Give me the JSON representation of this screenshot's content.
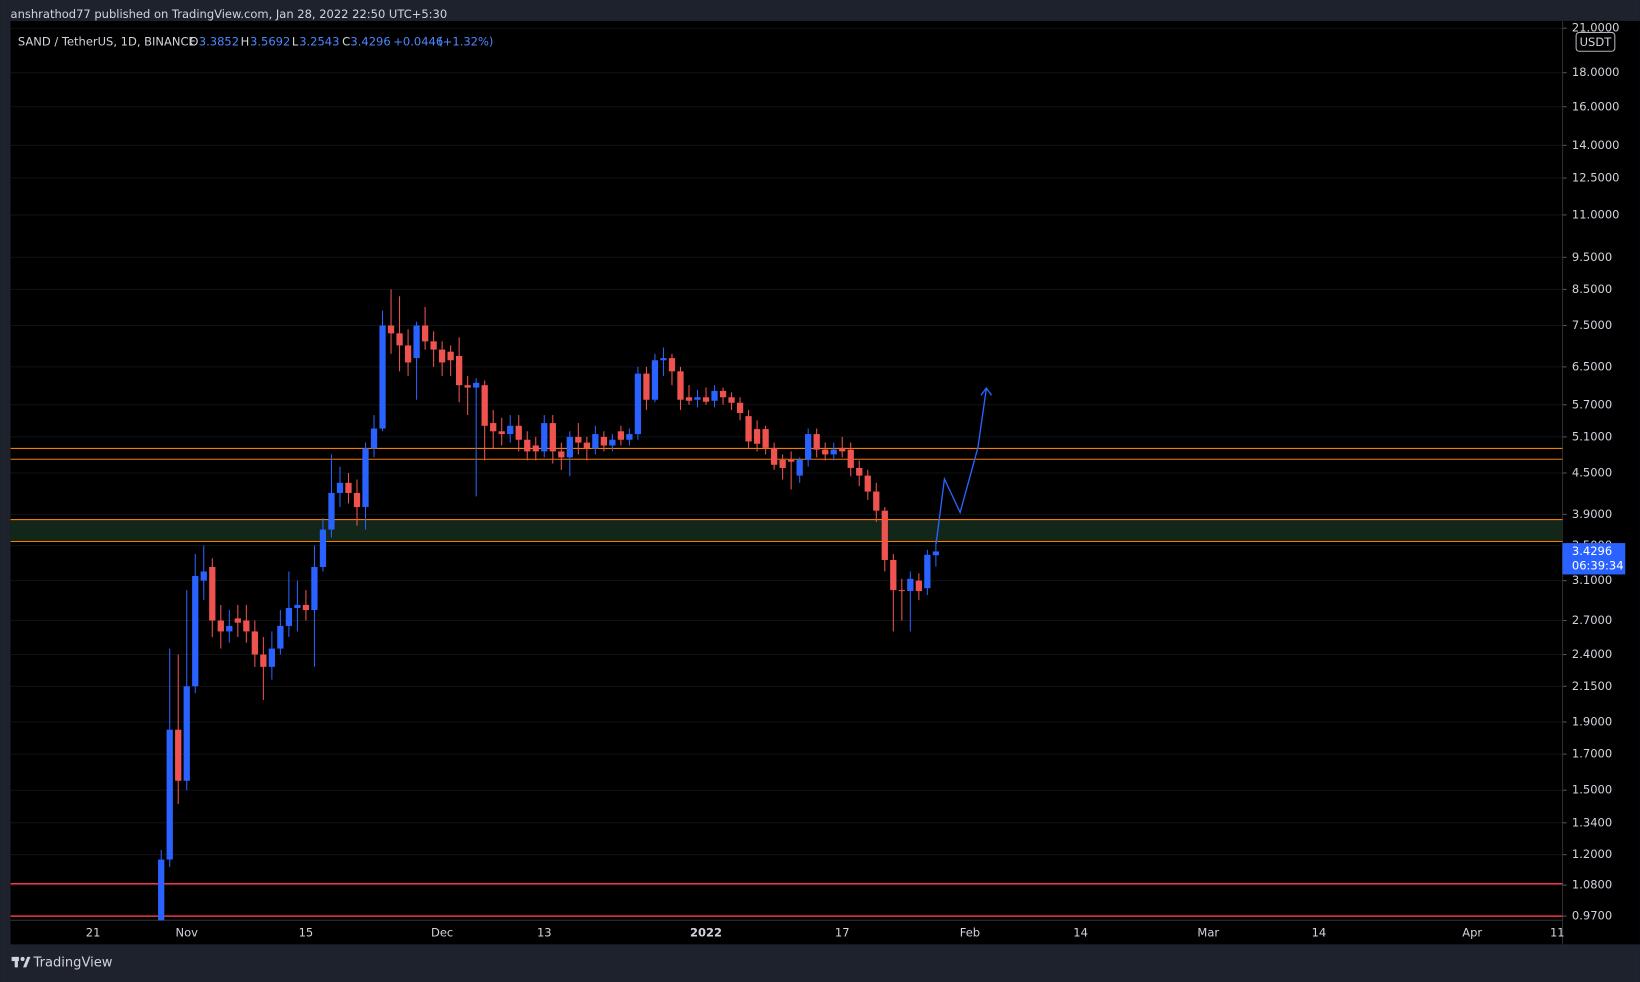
{
  "chart_data": {
    "type": "candlestick",
    "header": "anshrathod77 published on TradingView.com, Jan 28, 2022 22:50 UTC+5:30",
    "title": "SAND / TetherUS, 1D, BINANCE",
    "ohlc_labels": [
      "O",
      "H",
      "L",
      "C"
    ],
    "change_label": "+0.0446",
    "change_pct_label": "(+1.32%)",
    "currency": "USDT",
    "countdown": "06:39:34",
    "brand": "TradingView",
    "categories": [
      null,
      null,
      null,
      null,
      null,
      null,
      null,
      null,
      null,
      "21",
      null,
      null,
      null,
      null,
      null,
      null,
      null,
      null,
      null,
      null,
      "Nov",
      null,
      null,
      null,
      null,
      null,
      null,
      null,
      null,
      null,
      null,
      null,
      null,
      null,
      "15",
      null,
      null,
      null,
      null,
      null,
      null,
      null,
      null,
      null,
      null,
      null,
      null,
      null,
      null,
      null,
      "Dec",
      null,
      null,
      null,
      null,
      null,
      null,
      null,
      null,
      null,
      null,
      null,
      "13",
      null,
      null,
      null,
      null,
      null,
      null,
      null,
      null,
      null,
      null,
      null,
      null,
      null,
      null,
      null,
      null,
      null,
      null,
      "2022",
      null,
      null,
      null,
      null,
      null,
      null,
      null,
      null,
      null,
      null,
      null,
      null,
      null,
      null,
      null,
      "17",
      null,
      null,
      null,
      null,
      null,
      null,
      null,
      null,
      null,
      null,
      null,
      null,
      null,
      null,
      "Feb",
      null,
      null,
      null,
      null,
      null,
      null,
      null,
      null,
      null,
      null,
      null,
      null,
      "14",
      null,
      null,
      null,
      null,
      null,
      null,
      null,
      null,
      null,
      null,
      null,
      null,
      null,
      null,
      "Mar",
      null,
      null,
      null,
      null,
      null,
      null,
      null,
      null,
      null,
      null,
      null,
      null,
      "14",
      null,
      null,
      null,
      null,
      null,
      null,
      null,
      null,
      null,
      null,
      null,
      null,
      null,
      null,
      null,
      null,
      null,
      "Apr",
      null,
      null,
      null,
      null,
      null,
      null,
      null,
      null,
      null,
      "11"
    ],
    "open": [
      null,
      null,
      null,
      null,
      null,
      null,
      null,
      null,
      null,
      null,
      null,
      null,
      null,
      null,
      null,
      null,
      null,
      0.95,
      1.18,
      1.85,
      1.55,
      2.15,
      3.1,
      3.25,
      2.7,
      2.6,
      2.72,
      2.7,
      2.6,
      2.4,
      2.3,
      2.45,
      2.65,
      2.82,
      2.85,
      2.8,
      3.25,
      3.7,
      4.2,
      4.35,
      4.2,
      4.0,
      4.9,
      5.25,
      7.5,
      7.3,
      7.0,
      6.7,
      7.5,
      7.1,
      6.9,
      6.85,
      6.75,
      6.1,
      6.05,
      6.1,
      5.35,
      5.2,
      5.15,
      5.3,
      5.05,
      4.95,
      4.85,
      5.35,
      4.85,
      4.75,
      5.1,
      5.0,
      4.9,
      5.1,
      4.95,
      5.2,
      5.05,
      5.15,
      6.35,
      5.8,
      6.65,
      6.7,
      6.4,
      5.85,
      5.8,
      5.85,
      5.78,
      5.98,
      5.85,
      5.74,
      5.48,
      5.24,
      5.24,
      4.91,
      4.71,
      4.71,
      4.46,
      4.71,
      5.15,
      4.88,
      4.8,
      4.91,
      4.88,
      4.58,
      4.46,
      4.22,
      3.95,
      3.33,
      3.0,
      2.99,
      3.1,
      3.02,
      3.3852,
      null,
      null,
      null,
      null,
      null,
      null,
      null,
      null,
      null,
      null,
      null,
      null,
      null,
      null,
      null,
      null,
      null,
      null,
      null,
      null,
      null,
      null,
      null,
      null,
      null,
      null,
      null,
      null,
      null,
      null,
      null,
      null,
      null,
      null,
      null,
      null,
      null,
      null,
      null,
      null,
      null,
      null,
      null,
      null,
      null,
      null,
      null,
      null,
      null,
      null,
      null,
      null,
      null,
      null,
      null,
      null,
      null,
      null,
      null,
      null,
      null,
      null,
      null,
      null,
      null,
      null,
      null,
      null,
      null,
      null,
      null,
      null,
      null
    ],
    "high": [
      null,
      null,
      null,
      null,
      null,
      null,
      null,
      null,
      null,
      null,
      null,
      null,
      null,
      null,
      null,
      null,
      null,
      1.22,
      2.45,
      2.4,
      3.0,
      3.4,
      3.5,
      3.35,
      2.85,
      2.8,
      2.85,
      2.85,
      2.7,
      2.55,
      2.6,
      2.8,
      3.2,
      3.1,
      3.0,
      3.5,
      3.85,
      4.8,
      4.6,
      4.5,
      4.4,
      5.0,
      5.5,
      7.9,
      8.5,
      8.3,
      7.4,
      7.6,
      8.0,
      7.35,
      7.1,
      7.0,
      7.2,
      6.3,
      6.25,
      6.2,
      5.6,
      5.45,
      5.5,
      5.5,
      5.2,
      5.1,
      5.5,
      5.5,
      5.0,
      5.2,
      5.35,
      5.1,
      5.3,
      5.2,
      5.15,
      5.3,
      5.25,
      6.5,
      6.5,
      6.8,
      6.95,
      6.8,
      6.5,
      6.1,
      6.0,
      6.05,
      6.1,
      6.05,
      5.95,
      5.85,
      5.6,
      5.4,
      5.3,
      5.0,
      4.8,
      4.85,
      4.75,
      5.25,
      5.25,
      5.0,
      5.0,
      5.1,
      5.0,
      4.7,
      4.55,
      4.35,
      4.0,
      3.4,
      3.12,
      3.2,
      3.18,
      3.45,
      3.5692,
      null,
      null,
      null,
      null,
      null,
      null,
      null,
      null,
      null,
      null,
      null,
      null,
      null,
      null,
      null,
      null,
      null,
      null,
      null,
      null,
      null,
      null,
      null,
      null,
      null,
      null,
      null,
      null,
      null,
      null,
      null,
      null,
      null,
      null,
      null,
      null,
      null,
      null,
      null,
      null,
      null,
      null,
      null,
      null,
      null,
      null,
      null,
      null,
      null,
      null,
      null,
      null,
      null,
      null,
      null,
      null,
      null,
      null,
      null,
      null,
      null,
      null,
      null,
      null,
      null,
      null,
      null,
      null,
      null,
      null,
      null,
      null,
      null
    ],
    "low": [
      null,
      null,
      null,
      null,
      null,
      null,
      null,
      null,
      null,
      null,
      null,
      null,
      null,
      null,
      null,
      null,
      null,
      0.9,
      1.15,
      1.43,
      1.5,
      2.1,
      2.9,
      2.55,
      2.45,
      2.5,
      2.55,
      2.5,
      2.3,
      2.05,
      2.2,
      2.4,
      2.55,
      2.6,
      2.7,
      2.3,
      3.2,
      3.6,
      4.0,
      4.05,
      3.75,
      3.7,
      4.75,
      5.2,
      6.8,
      6.4,
      6.3,
      5.8,
      6.9,
      6.5,
      6.3,
      6.3,
      5.75,
      5.5,
      4.15,
      4.7,
      4.9,
      4.95,
      5.0,
      4.85,
      4.7,
      4.7,
      4.75,
      4.65,
      4.55,
      4.45,
      4.8,
      4.7,
      4.8,
      4.85,
      4.85,
      4.95,
      4.95,
      5.05,
      5.6,
      5.75,
      6.3,
      6.1,
      5.6,
      5.7,
      5.65,
      5.7,
      5.65,
      5.7,
      5.6,
      5.4,
      4.9,
      4.85,
      4.8,
      4.55,
      4.4,
      4.25,
      4.35,
      4.6,
      4.75,
      4.7,
      4.7,
      4.75,
      4.45,
      4.3,
      4.1,
      3.8,
      3.2,
      2.6,
      2.7,
      2.6,
      2.9,
      2.95,
      3.2543,
      null,
      null,
      null,
      null,
      null,
      null,
      null,
      null,
      null,
      null,
      null,
      null,
      null,
      null,
      null,
      null,
      null,
      null,
      null,
      null,
      null,
      null,
      null,
      null,
      null,
      null,
      null,
      null,
      null,
      null,
      null,
      null,
      null,
      null,
      null,
      null,
      null,
      null,
      null,
      null,
      null,
      null,
      null,
      null,
      null,
      null,
      null,
      null,
      null,
      null,
      null,
      null,
      null,
      null,
      null,
      null,
      null,
      null,
      null,
      null,
      null,
      null,
      null,
      null,
      null,
      null,
      null,
      null,
      null,
      null,
      null,
      null,
      null
    ],
    "close": [
      null,
      null,
      null,
      null,
      null,
      null,
      null,
      null,
      null,
      null,
      null,
      null,
      null,
      null,
      null,
      null,
      null,
      1.18,
      1.85,
      1.55,
      2.15,
      3.15,
      3.2,
      2.7,
      2.6,
      2.65,
      2.68,
      2.6,
      2.4,
      2.3,
      2.45,
      2.65,
      2.82,
      2.85,
      2.8,
      3.25,
      3.7,
      4.2,
      4.35,
      4.2,
      4.0,
      4.9,
      5.25,
      7.5,
      7.3,
      7.0,
      6.6,
      7.5,
      7.1,
      6.9,
      6.6,
      6.65,
      6.1,
      6.05,
      6.15,
      5.3,
      5.2,
      5.15,
      5.3,
      5.05,
      4.85,
      4.85,
      5.35,
      4.85,
      4.75,
      5.1,
      5.0,
      4.9,
      5.15,
      4.95,
      5.05,
      5.05,
      5.15,
      6.35,
      5.8,
      6.65,
      6.7,
      6.4,
      5.8,
      5.78,
      5.85,
      5.76,
      5.98,
      5.85,
      5.74,
      5.54,
      5.02,
      4.98,
      4.91,
      4.63,
      4.58,
      4.68,
      4.71,
      5.15,
      4.88,
      4.8,
      4.88,
      4.85,
      4.58,
      4.46,
      4.22,
      3.95,
      3.33,
      3.0,
      2.99,
      3.12,
      2.99,
      3.39,
      3.4296,
      null,
      null,
      null,
      null,
      null,
      null,
      null,
      null,
      null,
      null,
      null,
      null,
      null,
      null,
      null,
      null,
      null,
      null,
      null,
      null,
      null,
      null,
      null,
      null,
      null,
      null,
      null,
      null,
      null,
      null,
      null,
      null,
      null,
      null,
      null,
      null,
      null,
      null,
      null,
      null,
      null,
      null,
      null,
      null,
      null,
      null,
      null,
      null,
      null,
      null,
      null,
      null,
      null,
      null,
      null,
      null,
      null,
      null,
      null,
      null,
      null,
      null,
      null,
      null,
      null,
      null,
      null,
      null,
      null,
      null,
      null,
      null,
      null
    ],
    "up_color": "#2962ff",
    "down_color": "#ef5350",
    "log_y": true,
    "grid": true,
    "ylim": [
      0.97,
      21
    ],
    "yticks": [
      {
        "value": 21,
        "label": "21.0000"
      },
      {
        "value": 18,
        "label": "18.0000"
      },
      {
        "value": 16,
        "label": "16.0000"
      },
      {
        "value": 14,
        "label": "14.0000"
      },
      {
        "value": 12.5,
        "label": "12.5000"
      },
      {
        "value": 11,
        "label": "11.0000"
      },
      {
        "value": 9.5,
        "label": "9.5000"
      },
      {
        "value": 8.5,
        "label": "8.5000"
      },
      {
        "value": 7.5,
        "label": "7.5000"
      },
      {
        "value": 6.5,
        "label": "6.5000"
      },
      {
        "value": 5.7,
        "label": "5.7000"
      },
      {
        "value": 5.1,
        "label": "5.1000"
      },
      {
        "value": 4.5,
        "label": "4.5000"
      },
      {
        "value": 3.9,
        "label": "3.9000"
      },
      {
        "value": 3.5,
        "label": "3.5000"
      },
      {
        "value": 3.1,
        "label": "3.1000"
      },
      {
        "value": 2.7,
        "label": "2.7000"
      },
      {
        "value": 2.4,
        "label": "2.4000"
      },
      {
        "value": 2.15,
        "label": "2.1500"
      },
      {
        "value": 1.9,
        "label": "1.9000"
      },
      {
        "value": 1.7,
        "label": "1.7000"
      },
      {
        "value": 1.5,
        "label": "1.5000"
      },
      {
        "value": 1.34,
        "label": "1.3400"
      },
      {
        "value": 1.2,
        "label": "1.2000"
      },
      {
        "value": 1.08,
        "label": "1.0800"
      },
      {
        "value": 0.97,
        "label": "0.9700"
      }
    ],
    "levels": [
      {
        "top": 4.9,
        "bottom": 4.72,
        "color": "#f57c00"
      },
      {
        "top": 3.83,
        "bottom": 3.55,
        "color": "#f57c00",
        "fill": "#13261a"
      },
      {
        "price": 1.085,
        "color": "#f23645"
      },
      {
        "price": 0.97,
        "color": "#f23645"
      }
    ]
  }
}
